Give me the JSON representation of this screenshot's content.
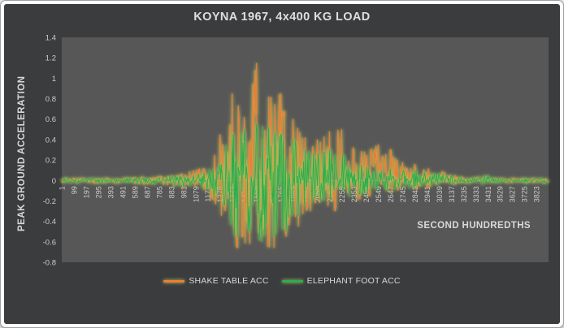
{
  "frame": {
    "border_color": "#9aa0a4",
    "pad_color": "#fdfdfd"
  },
  "chart": {
    "bg": "#3b3c3e",
    "plot_bg": "#575757",
    "title_color": "#dedede",
    "axis_title_color": "#d9d9d9",
    "tick_color": "#cccccc",
    "zero_line_color": "#8f8f8f",
    "legend_text_color": "#d6d6d6"
  },
  "chart_data": {
    "type": "line",
    "title": "KOYNA 1967, 4x400 KG LOAD",
    "xlabel": "SECOND HUNDREDTHS",
    "ylabel": "PEAK GROUND ACCELERATION",
    "xlim": [
      1,
      3920
    ],
    "ylim": [
      -0.8,
      1.4
    ],
    "grid": false,
    "legend_position": "bottom",
    "y_ticks": [
      "1.4",
      "1.2",
      "1",
      "0.8",
      "0.6",
      "0.4",
      "0.2",
      "0",
      "-0.2",
      "-0.4",
      "-0.6",
      "-0.8"
    ],
    "x_ticks": [
      1,
      99,
      197,
      295,
      393,
      491,
      589,
      687,
      785,
      883,
      981,
      1079,
      1177,
      1275,
      1373,
      1471,
      1569,
      1667,
      1765,
      1863,
      1961,
      2059,
      2157,
      2255,
      2353,
      2451,
      2549,
      2647,
      2745,
      2843,
      2941,
      3039,
      3137,
      3235,
      3333,
      3431,
      3529,
      3627,
      3725,
      3823
    ],
    "series": [
      {
        "name": "SHAKE TABLE ACC",
        "color": "#ED7D31",
        "glow_color": "#c9cc66",
        "max_point": {
          "x": 1569,
          "y": 1.15
        },
        "min_point": {
          "x": 1418,
          "y": -0.66
        },
        "envelope": {
          "x": [
            1,
            99,
            197,
            295,
            393,
            491,
            589,
            687,
            785,
            883,
            981,
            1079,
            1177,
            1275,
            1373,
            1471,
            1569,
            1667,
            1765,
            1863,
            1961,
            2059,
            2157,
            2255,
            2353,
            2451,
            2549,
            2647,
            2745,
            2843,
            2941,
            3039,
            3137,
            3235,
            3333,
            3431,
            3529,
            3627,
            3725,
            3823
          ],
          "hi": [
            0.02,
            0.02,
            0.02,
            0.02,
            0.02,
            0.02,
            0.03,
            0.04,
            0.04,
            0.05,
            0.12,
            0.1,
            0.15,
            0.45,
            0.85,
            0.62,
            1.15,
            0.82,
            0.85,
            0.6,
            0.42,
            0.4,
            0.48,
            0.5,
            0.3,
            0.28,
            0.35,
            0.3,
            0.18,
            0.16,
            0.12,
            0.1,
            0.06,
            0.04,
            0.03,
            0.03,
            0.02,
            0.02,
            0.02,
            0.02
          ],
          "lo": [
            -0.02,
            -0.02,
            -0.02,
            -0.02,
            -0.02,
            -0.02,
            -0.03,
            -0.04,
            -0.04,
            -0.05,
            -0.08,
            -0.08,
            -0.12,
            -0.3,
            -0.66,
            -0.62,
            -0.55,
            -0.66,
            -0.55,
            -0.45,
            -0.3,
            -0.28,
            -0.3,
            -0.28,
            -0.22,
            -0.15,
            -0.15,
            -0.12,
            -0.1,
            -0.08,
            -0.07,
            -0.06,
            -0.04,
            -0.03,
            -0.02,
            -0.02,
            -0.02,
            -0.02,
            -0.02,
            -0.02
          ]
        }
      },
      {
        "name": "ELEPHANT FOOT ACC",
        "color": "#2fad4e",
        "glow_color": "#9ccf63",
        "max_point": {
          "x": 1569,
          "y": 0.55
        },
        "min_point": {
          "x": 1614,
          "y": -0.6
        },
        "envelope": {
          "x": [
            1,
            99,
            197,
            295,
            393,
            491,
            589,
            687,
            785,
            883,
            981,
            1079,
            1177,
            1275,
            1373,
            1471,
            1569,
            1667,
            1765,
            1863,
            1961,
            2059,
            2157,
            2255,
            2353,
            2451,
            2549,
            2647,
            2745,
            2843,
            2941,
            3039,
            3137,
            3235,
            3333,
            3431,
            3529,
            3627,
            3725,
            3823
          ],
          "hi": [
            0.02,
            0.02,
            0.02,
            0.02,
            0.02,
            0.02,
            0.02,
            0.03,
            0.03,
            0.04,
            0.06,
            0.06,
            0.1,
            0.25,
            0.45,
            0.5,
            0.55,
            0.52,
            0.45,
            0.4,
            0.3,
            0.26,
            0.3,
            0.26,
            0.2,
            0.16,
            0.14,
            0.13,
            0.11,
            0.11,
            0.09,
            0.07,
            0.05,
            0.03,
            0.03,
            0.06,
            0.02,
            0.02,
            0.02,
            0.02
          ],
          "lo": [
            -0.02,
            -0.02,
            -0.02,
            -0.02,
            -0.02,
            -0.02,
            -0.02,
            -0.03,
            -0.03,
            -0.04,
            -0.06,
            -0.06,
            -0.1,
            -0.25,
            -0.55,
            -0.5,
            -0.6,
            -0.55,
            -0.5,
            -0.35,
            -0.25,
            -0.2,
            -0.22,
            -0.18,
            -0.15,
            -0.12,
            -0.1,
            -0.1,
            -0.08,
            -0.08,
            -0.06,
            -0.05,
            -0.04,
            -0.02,
            -0.02,
            -0.05,
            -0.02,
            -0.02,
            -0.02,
            -0.02
          ]
        }
      }
    ]
  }
}
